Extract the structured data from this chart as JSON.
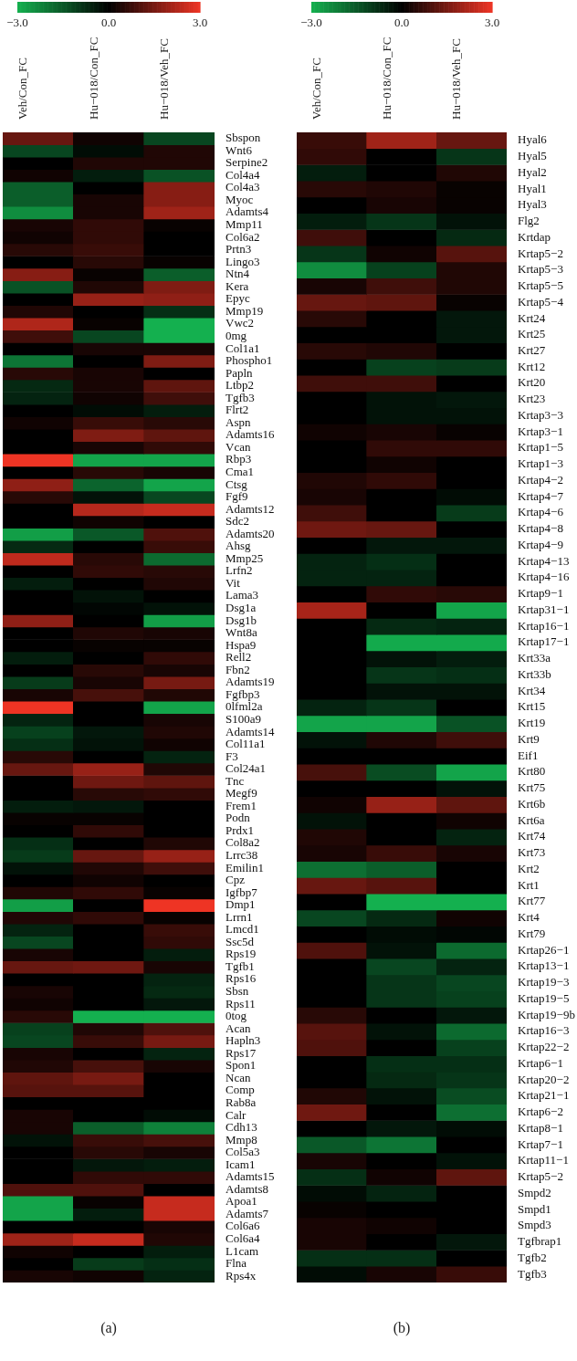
{
  "chart_data": [
    {
      "type": "heatmap",
      "categories": [
        "Veh/Con_FC",
        "Hu−018/Con_FC",
        "Hu−018/Veh_FC"
      ],
      "y_categories": [
        "Sbspon",
        "Wnt6",
        "Serpine2",
        "Col4a4",
        "Col4a3",
        "Myoc",
        "Adamts4",
        "Mmp11",
        "Col6a2",
        "Prtn3",
        "Lingo3",
        "Ntn4",
        "Kera",
        "Epyc",
        "Mmp19",
        "Vwc2",
        "0mg",
        "Col1a1",
        "Phospho1",
        "Papln",
        "Ltbp2",
        "Tgfb3",
        "Flrt2",
        "Aspn",
        "Adamts16",
        "Vcan",
        "Rbp3",
        "Cma1",
        "Ctsg",
        "Fgf9",
        "Adamts12",
        "Sdc2",
        "Adamts20",
        "Ahsg",
        "Mmp25",
        "Lrfn2",
        "Vit",
        "Lama3",
        "Dsg1a",
        "Dsg1b",
        "Wnt8a",
        "Hspa9",
        "Rell2",
        "Fbn2",
        "Adamts19",
        "Fgfbp3",
        "0lfml2a",
        "S100a9",
        "Adamts14",
        "Col11a1",
        "F3",
        "Col24a1",
        "Tnc",
        "Megf9",
        "Frem1",
        "Podn",
        "Prdx1",
        "Col8a2",
        "Lrrc38",
        "Emilin1",
        "Cpz",
        "Igfbp7",
        "Dmp1",
        "Lrrn1",
        "Lmcd1",
        "Ssc5d",
        "Rps19",
        "Tgfb1",
        "Rps16",
        "Sbsn",
        "Rps11",
        "0tog",
        "Acan",
        "Hapln3",
        "Rps17",
        "Spon1",
        "Ncan",
        "Comp",
        "Rab8a",
        "Calr",
        "Cdh13",
        "Mmp8",
        "Col5a3",
        "Icam1",
        "Adamts15",
        "Adamts8",
        "Apoa1",
        "Adamts7",
        "Col6a6",
        "Col6a4",
        "L1cam",
        "Flna",
        "Rps4x"
      ],
      "cells": [
        [
          1.3,
          0.2,
          -1.2
        ],
        [
          -1.2,
          -0.2,
          0.4
        ],
        [
          0,
          0.4,
          0.4
        ],
        [
          0.2,
          -0.5,
          -1.4
        ],
        [
          -1.6,
          0,
          1.7
        ],
        [
          -1.6,
          0.3,
          1.7
        ],
        [
          -2.4,
          0.3,
          2.0
        ],
        [
          0.3,
          0.6,
          0.1
        ],
        [
          0.2,
          0.6,
          0
        ],
        [
          0.5,
          0.7,
          0
        ],
        [
          0,
          0.5,
          0.1
        ],
        [
          1.7,
          0.1,
          -1.6
        ],
        [
          -1.4,
          0.4,
          1.6
        ],
        [
          0,
          1.9,
          1.8
        ],
        [
          0.4,
          0,
          -0.8
        ],
        [
          2.2,
          0.1,
          -3.0
        ],
        [
          0.8,
          -1.2,
          -3.0
        ],
        [
          0,
          0.3,
          0.3
        ],
        [
          -2.0,
          0,
          1.6
        ],
        [
          0.5,
          0.3,
          0
        ],
        [
          -0.7,
          0.3,
          1.2
        ],
        [
          -0.6,
          0.2,
          0.8
        ],
        [
          0,
          -0.2,
          -0.5
        ],
        [
          0.2,
          0.7,
          0.5
        ],
        [
          0,
          1.6,
          1.2
        ],
        [
          0,
          0.3,
          0.6
        ],
        [
          3.0,
          -2.8,
          -2.8
        ],
        [
          0,
          0.5,
          0.3
        ],
        [
          1.8,
          -1.7,
          -2.8
        ],
        [
          0.5,
          -0.3,
          -1.2
        ],
        [
          0,
          2.3,
          2.5
        ],
        [
          0,
          0.2,
          0
        ],
        [
          -2.7,
          -1.5,
          1.0
        ],
        [
          -0.7,
          0,
          0.7
        ],
        [
          2.4,
          0.5,
          -1.8
        ],
        [
          0,
          0.6,
          0.5
        ],
        [
          -0.5,
          0,
          0.4
        ],
        [
          0,
          -0.3,
          0
        ],
        [
          0,
          -0.1,
          -0.3
        ],
        [
          1.8,
          0,
          -2.7
        ],
        [
          0,
          0.4,
          0.3
        ],
        [
          0,
          0.1,
          0.1
        ],
        [
          -0.5,
          0,
          0.6
        ],
        [
          0,
          0.5,
          0.3
        ],
        [
          -1.0,
          0.3,
          1.5
        ],
        [
          0.3,
          0.9,
          0.4
        ],
        [
          3.0,
          0,
          -2.8
        ],
        [
          -0.6,
          0,
          0.3
        ],
        [
          -1.1,
          -0.4,
          0.4
        ],
        [
          -0.8,
          -0.3,
          0.2
        ],
        [
          0.5,
          0,
          -0.6
        ],
        [
          1.3,
          1.9,
          0.4
        ],
        [
          0,
          1.4,
          1.2
        ],
        [
          0,
          0.5,
          0.6
        ],
        [
          -0.5,
          -0.4,
          0
        ],
        [
          0.1,
          0.1,
          0
        ],
        [
          0,
          0.6,
          0
        ],
        [
          -0.8,
          0,
          0.4
        ],
        [
          -1.0,
          1.3,
          1.9
        ],
        [
          -0.3,
          0.4,
          0.8
        ],
        [
          0,
          0.2,
          0
        ],
        [
          0.4,
          0.6,
          0.1
        ],
        [
          -2.7,
          0,
          3.0
        ],
        [
          0.4,
          0.6,
          0.1
        ],
        [
          -0.6,
          0,
          0.7
        ],
        [
          -1.2,
          0,
          0.6
        ],
        [
          0.3,
          0,
          -0.5
        ],
        [
          1.3,
          1.4,
          0.3
        ],
        [
          0,
          0,
          -0.6
        ],
        [
          0.3,
          0,
          -0.7
        ],
        [
          0.2,
          0,
          -0.4
        ],
        [
          0.5,
          -3.0,
          -3.0
        ],
        [
          -1.1,
          0.4,
          1.0
        ],
        [
          -1.2,
          0.7,
          1.5
        ],
        [
          0.3,
          0,
          -0.6
        ],
        [
          0.4,
          0.9,
          0.3
        ],
        [
          1.2,
          1.5,
          0
        ],
        [
          1.1,
          1.1,
          0
        ],
        [
          0,
          0,
          0
        ],
        [
          0.3,
          0,
          -0.2
        ],
        [
          0.3,
          -1.6,
          -2.2
        ],
        [
          -0.3,
          0.7,
          0.9
        ],
        [
          0,
          0.5,
          0.3
        ],
        [
          0,
          -0.4,
          -0.5
        ],
        [
          0,
          0.6,
          0.6
        ],
        [
          1.0,
          1.0,
          0
        ],
        [
          -2.8,
          0.1,
          2.5
        ],
        [
          -2.8,
          -0.5,
          2.5
        ],
        [
          0,
          0,
          0.3
        ],
        [
          2.0,
          2.5,
          0.4
        ],
        [
          0.2,
          0,
          -0.5
        ],
        [
          0,
          -1.0,
          -0.8
        ],
        [
          0.3,
          0.2,
          -0.6
        ]
      ],
      "clim": [
        -3,
        3
      ],
      "cticks": [
        {
          "value": -3,
          "label": "−3.0"
        },
        {
          "value": 0,
          "label": "0.0"
        },
        {
          "value": 3,
          "label": "3.0"
        }
      ],
      "colors": [
        "#14b04f",
        "#000000",
        "#ee3424"
      ],
      "annotations": [
        "(a)"
      ]
    },
    {
      "type": "heatmap",
      "categories": [
        "Veh/Con_FC",
        "Hu−018/Con_FC",
        "Hu−018/Veh_FC"
      ],
      "y_categories": [
        "Hyal6",
        "Hyal5",
        "Hyal2",
        "Hyal1",
        "Hyal3",
        "Flg2",
        "Krtdap",
        "Krtap5−2",
        "Krtap5−3",
        "Krtap5−5",
        "Krtap5−4",
        "Krt24",
        "Krt25",
        "Krt27",
        "Krt12",
        "Krt20",
        "Krt23",
        "Krtap3−3",
        "Krtap3−1",
        "Krtap1−5",
        "Krtap1−3",
        "Krtap4−2",
        "Krtap4−7",
        "Krtap4−6",
        "Krtap4−8",
        "Krtap4−9",
        "Krtap4−13",
        "Krtap4−16",
        "Krtap9−1",
        "Krtap31−1",
        "Krtap16−1",
        "Krtap17−1",
        "Krt33a",
        "Krt33b",
        "Krt34",
        "Krt15",
        "Krt19",
        "Krt9",
        "Eif1",
        "Krt80",
        "Krt75",
        "Krt6b",
        "Krt6a",
        "Krt74",
        "Krt73",
        "Krt2",
        "Krt1",
        "Krt77",
        "Krt4",
        "Krt79",
        "Krtap26−1",
        "Krtap13−1",
        "Krtap19−3",
        "Krtap19−5",
        "Krtap19−9b",
        "Krtap16−3",
        "Krtap22−2",
        "Krtap6−1",
        "Krtap20−2",
        "Krtap21−1",
        "Krtap6−2",
        "Krtap8−1",
        "Krtap7−1",
        "Krtap11−1",
        "Krtap5−2",
        "Smpd2",
        "Smpd1",
        "Smpd3",
        "Tgfbrap1",
        "Tgfb2",
        "Tgfb3"
      ],
      "cells": [
        [
          0.7,
          2.0,
          1.3
        ],
        [
          0.6,
          0,
          -0.9
        ],
        [
          -0.5,
          0,
          0.4
        ],
        [
          0.5,
          0.4,
          0.1
        ],
        [
          0,
          0.3,
          0.1
        ],
        [
          -0.5,
          -0.9,
          -0.3
        ],
        [
          0.8,
          0,
          -0.7
        ],
        [
          -0.9,
          0.2,
          1.1
        ],
        [
          -2.4,
          -1.1,
          0.4
        ],
        [
          0.3,
          0.8,
          0.4
        ],
        [
          1.3,
          1.2,
          0.1
        ],
        [
          0.5,
          0,
          -0.4
        ],
        [
          0,
          0,
          -0.4
        ],
        [
          0.5,
          0.4,
          0
        ],
        [
          0,
          -1.1,
          -1.0
        ],
        [
          0.8,
          0.8,
          0
        ],
        [
          0,
          -0.3,
          -0.4
        ],
        [
          0,
          -0.3,
          -0.3
        ],
        [
          0.2,
          0.3,
          0.1
        ],
        [
          0,
          0.6,
          0.6
        ],
        [
          0,
          0.2,
          0
        ],
        [
          0.4,
          0.6,
          0
        ],
        [
          0.3,
          0,
          -0.2
        ],
        [
          0.8,
          0,
          -1.0
        ],
        [
          1.4,
          1.3,
          0
        ],
        [
          0,
          -0.4,
          -0.4
        ],
        [
          -0.6,
          -0.8,
          0
        ],
        [
          -0.6,
          -0.6,
          0
        ],
        [
          0,
          0.6,
          0.5
        ],
        [
          2.1,
          0,
          -2.8
        ],
        [
          0,
          -0.7,
          -0.6
        ],
        [
          0,
          -2.9,
          -2.9
        ],
        [
          0,
          -0.3,
          -0.5
        ],
        [
          0,
          -0.9,
          -0.8
        ],
        [
          0,
          -0.3,
          -0.3
        ],
        [
          -0.6,
          -0.9,
          0
        ],
        [
          -2.8,
          -2.8,
          -1.4
        ],
        [
          -0.3,
          0.4,
          0.8
        ],
        [
          0,
          0,
          0
        ],
        [
          0.9,
          -1.3,
          -2.8
        ],
        [
          0,
          0,
          -0.3
        ],
        [
          0.2,
          1.9,
          1.2
        ],
        [
          -0.3,
          0,
          0.2
        ],
        [
          0.4,
          0,
          -0.6
        ],
        [
          0.3,
          0.7,
          0.3
        ],
        [
          -1.9,
          -1.6,
          0
        ],
        [
          1.3,
          1.1,
          0
        ],
        [
          0,
          -3.0,
          -3.0
        ],
        [
          -1.2,
          -0.7,
          0.2
        ],
        [
          0,
          -0.2,
          -0.1
        ],
        [
          1.0,
          -0.3,
          -1.8
        ],
        [
          0,
          -1.2,
          -0.6
        ],
        [
          0,
          -0.9,
          -1.2
        ],
        [
          0,
          -0.9,
          -1.1
        ],
        [
          0.5,
          0,
          -0.4
        ],
        [
          1.1,
          -0.3,
          -1.8
        ],
        [
          1.0,
          0,
          -1.1
        ],
        [
          0,
          -0.8,
          -0.8
        ],
        [
          0,
          -0.7,
          -0.9
        ],
        [
          0.4,
          -0.3,
          -1.3
        ],
        [
          1.4,
          0,
          -1.9
        ],
        [
          0,
          -0.4,
          -0.2
        ],
        [
          -1.5,
          -2.0,
          0
        ],
        [
          0.3,
          0,
          -0.3
        ],
        [
          -0.8,
          0.2,
          1.2
        ],
        [
          -0.2,
          -0.6,
          0
        ],
        [
          0.1,
          0,
          0
        ],
        [
          0.3,
          0.2,
          0
        ],
        [
          0.3,
          0,
          -0.4
        ],
        [
          -0.8,
          -0.8,
          0
        ],
        [
          -0.2,
          0.3,
          0.7
        ]
      ],
      "clim": [
        -3,
        3
      ],
      "cticks": [
        {
          "value": -3,
          "label": "−3.0"
        },
        {
          "value": 0,
          "label": "0.0"
        },
        {
          "value": 3,
          "label": "3.0"
        }
      ],
      "colors": [
        "#14b04f",
        "#000000",
        "#ee3424"
      ],
      "annotations": [
        "(b)"
      ]
    }
  ]
}
